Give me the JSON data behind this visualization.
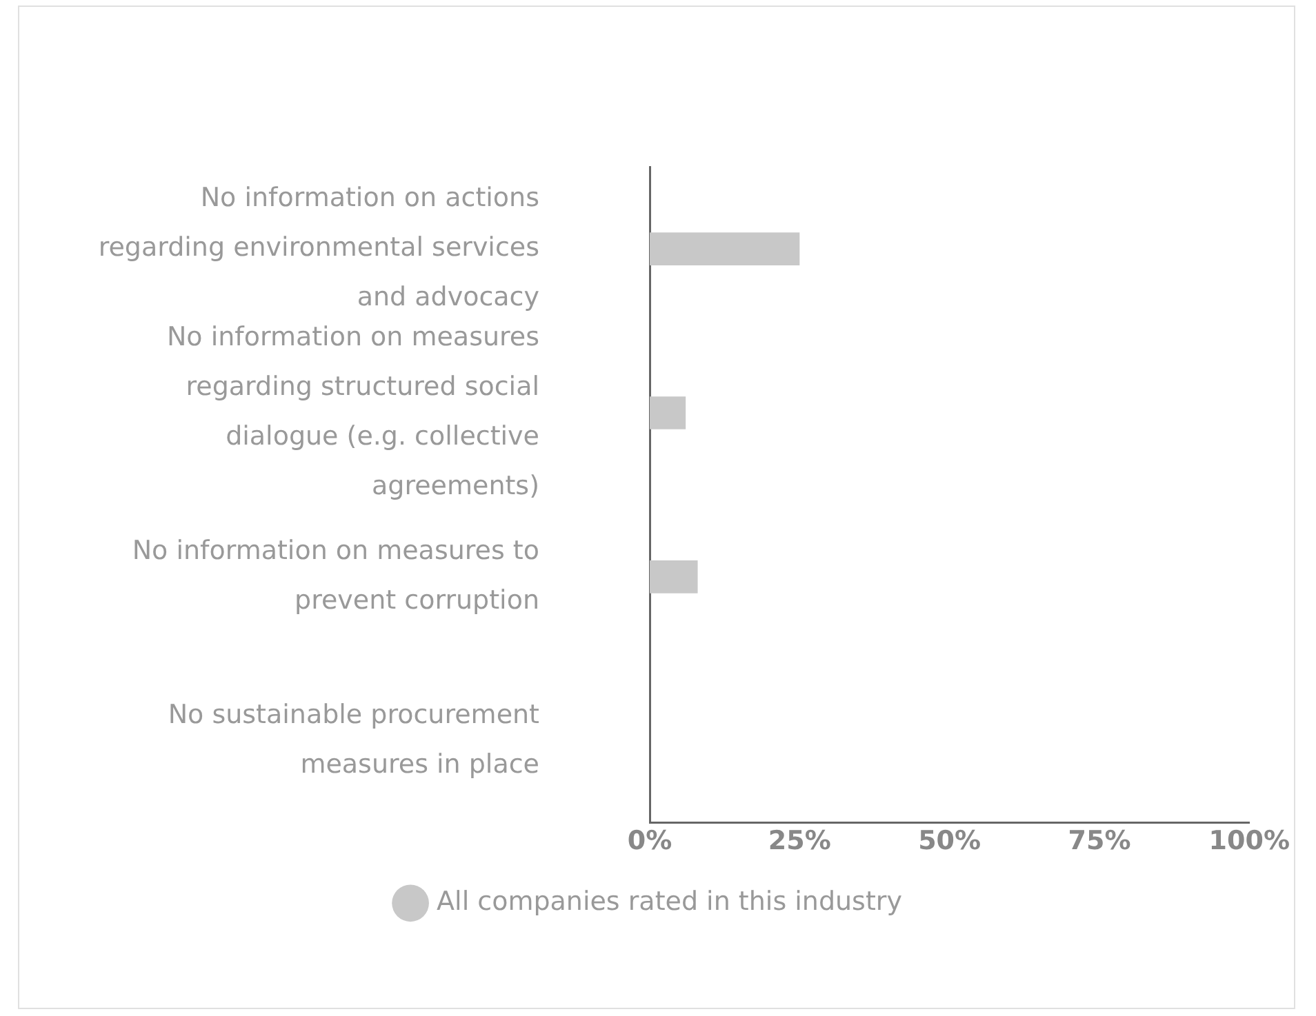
{
  "chart_data": {
    "type": "bar",
    "orientation": "horizontal",
    "categories": [
      "No information on actions regarding environmental services and advocacy",
      "No information on measures regarding structured social dialogue (e.g. collective agreements)",
      "No information on measures to prevent corruption",
      "No sustainable procurement measures in place"
    ],
    "series": [
      {
        "name": "All companies rated in this industry",
        "color": "#c8c8c8",
        "values": [
          25,
          6,
          8,
          0
        ]
      }
    ],
    "xlim": [
      0,
      100
    ],
    "xticks": [
      {
        "value": 0,
        "label": "0%"
      },
      {
        "value": 25,
        "label": "25%"
      },
      {
        "value": 50,
        "label": "50%"
      },
      {
        "value": 75,
        "label": "75%"
      },
      {
        "value": 100,
        "label": "100%"
      }
    ],
    "grid": false,
    "legend": "bottom"
  }
}
